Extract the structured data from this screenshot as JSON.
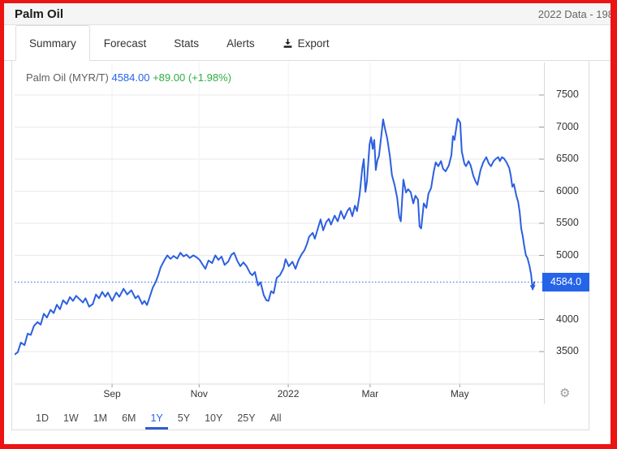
{
  "colors": {
    "accent": "#2563e8",
    "line": "#2c5fe0",
    "up_green": "#2fae44",
    "page_border_red": "#ec1313",
    "grid": "#e9e9e9",
    "grid_vertical": "#f0f0f0"
  },
  "header": {
    "title": "Palm Oil",
    "range_note": "2022 Data - 198"
  },
  "tabs": [
    {
      "label": "Summary",
      "active": true
    },
    {
      "label": "Forecast",
      "active": false
    },
    {
      "label": "Stats",
      "active": false
    },
    {
      "label": "Alerts",
      "active": false
    },
    {
      "label": "Export",
      "active": false,
      "icon": "download-icon"
    }
  ],
  "chart_header": {
    "instrument": "Palm Oil (MYR/T)",
    "price": "4584.00",
    "change": "+89.00 (+1.98%)"
  },
  "price_badge": "4584.0",
  "periods": {
    "options": [
      "1D",
      "1W",
      "1M",
      "6M",
      "1Y",
      "5Y",
      "10Y",
      "25Y",
      "All"
    ],
    "active": "1Y"
  },
  "icons": {
    "export": "download-icon",
    "settings": "gear-icon"
  },
  "chart_data": {
    "type": "line",
    "title": "Palm Oil (MYR/T)",
    "unit": "MYR/T",
    "current_value": 4584.0,
    "change": "+89.00",
    "change_pct": "+1.98%",
    "time_span": "1Y",
    "grid": true,
    "ylim": [
      2994,
      8006
    ],
    "y_ticks": [
      3500,
      4000,
      5000,
      5500,
      6000,
      6500,
      7000,
      7500
    ],
    "x_ticks": [
      {
        "t": 0.187,
        "label": "Sep"
      },
      {
        "t": 0.354,
        "label": "Nov"
      },
      {
        "t": 0.525,
        "label": "2022"
      },
      {
        "t": 0.682,
        "label": "Mar"
      },
      {
        "t": 0.854,
        "label": "May"
      }
    ],
    "points": [
      [
        0.0,
        3455
      ],
      [
        0.006,
        3490
      ],
      [
        0.012,
        3640
      ],
      [
        0.019,
        3600
      ],
      [
        0.025,
        3780
      ],
      [
        0.031,
        3760
      ],
      [
        0.037,
        3900
      ],
      [
        0.044,
        3960
      ],
      [
        0.05,
        3920
      ],
      [
        0.056,
        4090
      ],
      [
        0.062,
        4030
      ],
      [
        0.069,
        4150
      ],
      [
        0.075,
        4100
      ],
      [
        0.081,
        4230
      ],
      [
        0.087,
        4160
      ],
      [
        0.093,
        4300
      ],
      [
        0.1,
        4240
      ],
      [
        0.106,
        4350
      ],
      [
        0.112,
        4290
      ],
      [
        0.118,
        4370
      ],
      [
        0.131,
        4265
      ],
      [
        0.136,
        4330
      ],
      [
        0.143,
        4200
      ],
      [
        0.15,
        4240
      ],
      [
        0.156,
        4390
      ],
      [
        0.162,
        4330
      ],
      [
        0.168,
        4430
      ],
      [
        0.174,
        4355
      ],
      [
        0.179,
        4420
      ],
      [
        0.187,
        4290
      ],
      [
        0.195,
        4420
      ],
      [
        0.201,
        4355
      ],
      [
        0.209,
        4480
      ],
      [
        0.216,
        4390
      ],
      [
        0.224,
        4455
      ],
      [
        0.232,
        4330
      ],
      [
        0.237,
        4370
      ],
      [
        0.245,
        4240
      ],
      [
        0.249,
        4290
      ],
      [
        0.254,
        4225
      ],
      [
        0.26,
        4370
      ],
      [
        0.265,
        4495
      ],
      [
        0.271,
        4590
      ],
      [
        0.276,
        4700
      ],
      [
        0.28,
        4810
      ],
      [
        0.287,
        4920
      ],
      [
        0.293,
        5000
      ],
      [
        0.299,
        4945
      ],
      [
        0.305,
        4990
      ],
      [
        0.312,
        4950
      ],
      [
        0.318,
        5040
      ],
      [
        0.324,
        4985
      ],
      [
        0.33,
        5010
      ],
      [
        0.336,
        4960
      ],
      [
        0.343,
        5000
      ],
      [
        0.349,
        4970
      ],
      [
        0.355,
        4930
      ],
      [
        0.361,
        4850
      ],
      [
        0.366,
        4790
      ],
      [
        0.372,
        4920
      ],
      [
        0.379,
        4880
      ],
      [
        0.385,
        5000
      ],
      [
        0.391,
        4930
      ],
      [
        0.397,
        4980
      ],
      [
        0.403,
        4850
      ],
      [
        0.41,
        4905
      ],
      [
        0.416,
        5010
      ],
      [
        0.421,
        5040
      ],
      [
        0.427,
        4920
      ],
      [
        0.433,
        4830
      ],
      [
        0.439,
        4890
      ],
      [
        0.445,
        4830
      ],
      [
        0.452,
        4720
      ],
      [
        0.456,
        4690
      ],
      [
        0.461,
        4740
      ],
      [
        0.467,
        4530
      ],
      [
        0.472,
        4580
      ],
      [
        0.478,
        4380
      ],
      [
        0.483,
        4300
      ],
      [
        0.487,
        4290
      ],
      [
        0.492,
        4440
      ],
      [
        0.497,
        4410
      ],
      [
        0.503,
        4650
      ],
      [
        0.509,
        4690
      ],
      [
        0.516,
        4800
      ],
      [
        0.52,
        4940
      ],
      [
        0.526,
        4830
      ],
      [
        0.533,
        4900
      ],
      [
        0.539,
        4790
      ],
      [
        0.545,
        4930
      ],
      [
        0.551,
        5020
      ],
      [
        0.556,
        5080
      ],
      [
        0.561,
        5180
      ],
      [
        0.565,
        5290
      ],
      [
        0.572,
        5350
      ],
      [
        0.576,
        5260
      ],
      [
        0.583,
        5450
      ],
      [
        0.587,
        5560
      ],
      [
        0.592,
        5390
      ],
      [
        0.598,
        5520
      ],
      [
        0.603,
        5570
      ],
      [
        0.607,
        5480
      ],
      [
        0.614,
        5620
      ],
      [
        0.62,
        5530
      ],
      [
        0.626,
        5690
      ],
      [
        0.632,
        5570
      ],
      [
        0.639,
        5700
      ],
      [
        0.643,
        5740
      ],
      [
        0.648,
        5610
      ],
      [
        0.653,
        5775
      ],
      [
        0.657,
        5690
      ],
      [
        0.662,
        5950
      ],
      [
        0.667,
        6350
      ],
      [
        0.67,
        6500
      ],
      [
        0.673,
        5990
      ],
      [
        0.676,
        6150
      ],
      [
        0.681,
        6730
      ],
      [
        0.684,
        6840
      ],
      [
        0.687,
        6660
      ],
      [
        0.69,
        6800
      ],
      [
        0.693,
        6330
      ],
      [
        0.696,
        6480
      ],
      [
        0.699,
        6550
      ],
      [
        0.704,
        6900
      ],
      [
        0.707,
        7120
      ],
      [
        0.71,
        7000
      ],
      [
        0.715,
        6820
      ],
      [
        0.72,
        6550
      ],
      [
        0.724,
        6250
      ],
      [
        0.729,
        6100
      ],
      [
        0.734,
        5900
      ],
      [
        0.738,
        5600
      ],
      [
        0.741,
        5530
      ],
      [
        0.746,
        6180
      ],
      [
        0.751,
        5980
      ],
      [
        0.755,
        6030
      ],
      [
        0.76,
        5985
      ],
      [
        0.765,
        5810
      ],
      [
        0.769,
        5930
      ],
      [
        0.774,
        5870
      ],
      [
        0.777,
        5450
      ],
      [
        0.78,
        5420
      ],
      [
        0.785,
        5810
      ],
      [
        0.79,
        5740
      ],
      [
        0.794,
        5960
      ],
      [
        0.799,
        6050
      ],
      [
        0.804,
        6300
      ],
      [
        0.808,
        6450
      ],
      [
        0.813,
        6390
      ],
      [
        0.818,
        6470
      ],
      [
        0.822,
        6350
      ],
      [
        0.827,
        6310
      ],
      [
        0.833,
        6400
      ],
      [
        0.838,
        6560
      ],
      [
        0.841,
        6860
      ],
      [
        0.844,
        6800
      ],
      [
        0.85,
        7130
      ],
      [
        0.855,
        7070
      ],
      [
        0.858,
        6620
      ],
      [
        0.863,
        6430
      ],
      [
        0.866,
        6390
      ],
      [
        0.871,
        6470
      ],
      [
        0.875,
        6400
      ],
      [
        0.88,
        6240
      ],
      [
        0.885,
        6140
      ],
      [
        0.888,
        6100
      ],
      [
        0.894,
        6330
      ],
      [
        0.899,
        6450
      ],
      [
        0.905,
        6530
      ],
      [
        0.91,
        6430
      ],
      [
        0.914,
        6390
      ],
      [
        0.919,
        6470
      ],
      [
        0.924,
        6510
      ],
      [
        0.928,
        6530
      ],
      [
        0.931,
        6470
      ],
      [
        0.935,
        6530
      ],
      [
        0.939,
        6510
      ],
      [
        0.944,
        6450
      ],
      [
        0.949,
        6360
      ],
      [
        0.952,
        6240
      ],
      [
        0.955,
        6070
      ],
      [
        0.958,
        6110
      ],
      [
        0.963,
        5920
      ],
      [
        0.966,
        5835
      ],
      [
        0.969,
        5680
      ],
      [
        0.972,
        5420
      ],
      [
        0.975,
        5300
      ],
      [
        0.978,
        5130
      ],
      [
        0.981,
        5000
      ],
      [
        0.984,
        4960
      ],
      [
        0.988,
        4830
      ],
      [
        0.991,
        4700
      ],
      [
        0.994,
        4470
      ],
      [
        0.997,
        4584
      ]
    ]
  }
}
